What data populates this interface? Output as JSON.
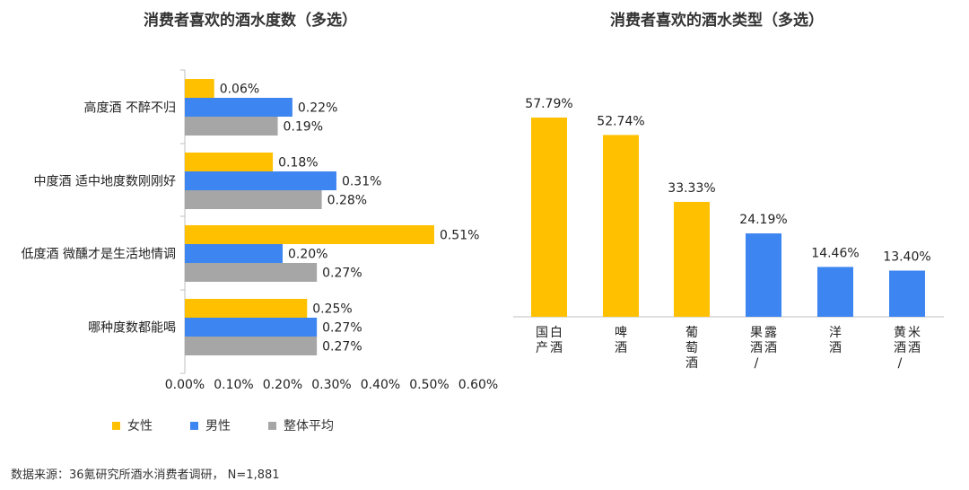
{
  "colors": {
    "female": "#FFC000",
    "male": "#3D85F0",
    "overall": "#A6A6A6",
    "axis": "#BFBFBF",
    "text": "#222222"
  },
  "source_text": "数据来源：36氪研究所酒水消费者调研， N=1,881",
  "chart_data": [
    {
      "type": "bar",
      "orientation": "horizontal",
      "title": "消费者喜欢的酒水度数（多选）",
      "categories": [
        "高度酒 不醉不归",
        "中度酒 适中地度数刚刚好",
        "低度酒 微醺才是生活地情调",
        "哪种度数都能喝"
      ],
      "series": [
        {
          "name": "女性",
          "color": "#FFC000",
          "values": [
            0.06,
            0.18,
            0.51,
            0.25
          ],
          "labels": [
            "0.06%",
            "0.18%",
            "0.51%",
            "0.25%"
          ]
        },
        {
          "name": "男性",
          "color": "#3D85F0",
          "values": [
            0.22,
            0.31,
            0.2,
            0.27
          ],
          "labels": [
            "0.22%",
            "0.31%",
            "0.20%",
            "0.27%"
          ]
        },
        {
          "name": "整体平均",
          "color": "#A6A6A6",
          "values": [
            0.19,
            0.28,
            0.27,
            0.27
          ],
          "labels": [
            "0.19%",
            "0.28%",
            "0.27%",
            "0.27%"
          ]
        }
      ],
      "xlim": [
        0,
        0.6
      ],
      "xticks": [
        0,
        0.1,
        0.2,
        0.3,
        0.4,
        0.5,
        0.6
      ],
      "xtick_labels": [
        "0.00%",
        "0.10%",
        "0.20%",
        "0.30%",
        "0.40%",
        "0.50%",
        "0.60%"
      ],
      "legend_position": "bottom-left",
      "grid": false
    },
    {
      "type": "bar",
      "orientation": "vertical",
      "title": "消费者喜欢的酒水类型（多选）",
      "categories": [
        "国产白酒",
        "啤酒",
        "葡萄酒",
        "果酒/露酒",
        "洋酒",
        "黄酒/米酒"
      ],
      "values": [
        57.79,
        52.74,
        33.33,
        24.19,
        14.46,
        13.4
      ],
      "labels": [
        "57.79%",
        "52.74%",
        "33.33%",
        "24.19%",
        "14.46%",
        "13.40%"
      ],
      "bar_colors": [
        "#FFC000",
        "#FFC000",
        "#FFC000",
        "#3D85F0",
        "#3D85F0",
        "#3D85F0"
      ],
      "ylim": [
        0,
        60
      ],
      "grid": false
    }
  ]
}
